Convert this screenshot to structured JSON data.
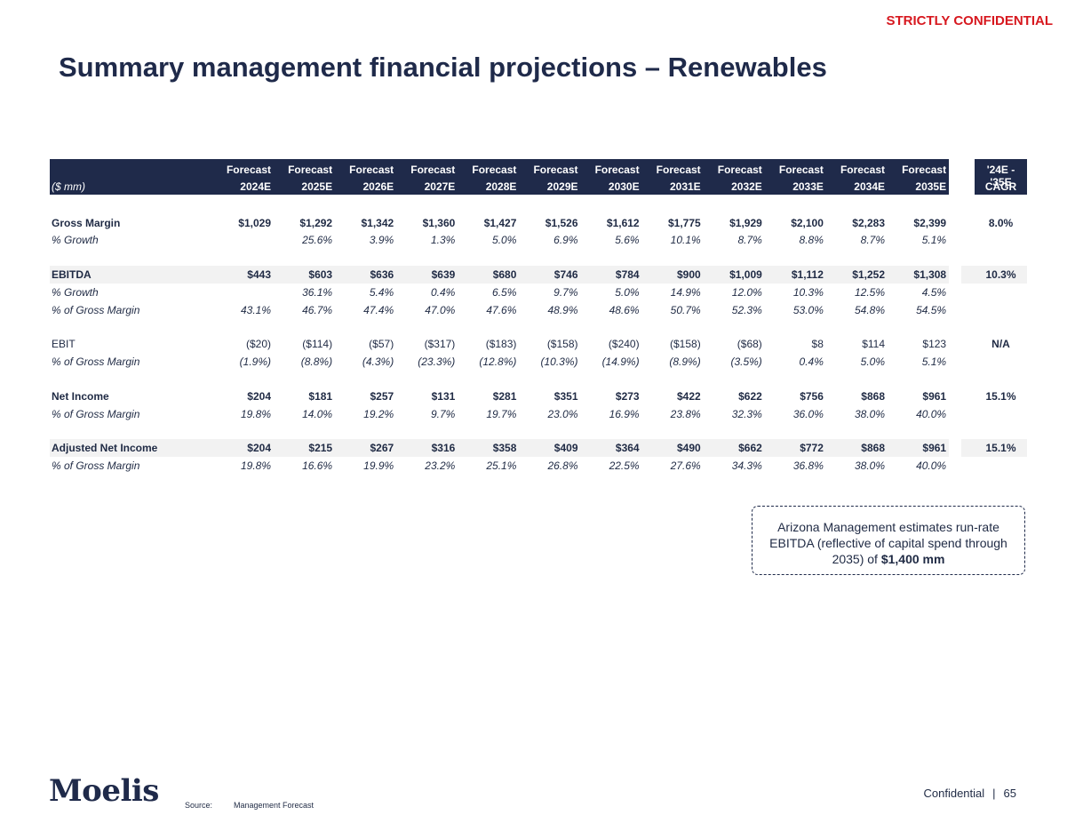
{
  "banner": "STRICTLY CONFIDENTIAL",
  "title": "Summary management financial projections – Renewables",
  "table": {
    "unit_label": "($ mm)",
    "header_top": [
      "Forecast",
      "Forecast",
      "Forecast",
      "Forecast",
      "Forecast",
      "Forecast",
      "Forecast",
      "Forecast",
      "Forecast",
      "Forecast",
      "Forecast",
      "Forecast"
    ],
    "years": [
      "2024E",
      "2025E",
      "2026E",
      "2027E",
      "2028E",
      "2029E",
      "2030E",
      "2031E",
      "2032E",
      "2033E",
      "2034E",
      "2035E"
    ],
    "cagr_header_top": "'24E - '35E",
    "cagr_header_bottom": "CAGR",
    "rows": [
      {
        "label": "Gross Margin",
        "style": "bold",
        "values": [
          "$1,029",
          "$1,292",
          "$1,342",
          "$1,360",
          "$1,427",
          "$1,526",
          "$1,612",
          "$1,775",
          "$1,929",
          "$2,100",
          "$2,283",
          "$2,399"
        ],
        "cagr": "8.0%"
      },
      {
        "label": "% Growth",
        "style": "italic",
        "values": [
          "",
          "25.6%",
          "3.9%",
          "1.3%",
          "5.0%",
          "6.9%",
          "5.6%",
          "10.1%",
          "8.7%",
          "8.8%",
          "8.7%",
          "5.1%"
        ],
        "cagr": ""
      },
      {
        "label": "EBITDA",
        "style": "bold",
        "shaded": true,
        "values": [
          "$443",
          "$603",
          "$636",
          "$639",
          "$680",
          "$746",
          "$784",
          "$900",
          "$1,009",
          "$1,112",
          "$1,252",
          "$1,308"
        ],
        "cagr": "10.3%"
      },
      {
        "label": "% Growth",
        "style": "italic",
        "values": [
          "",
          "36.1%",
          "5.4%",
          "0.4%",
          "6.5%",
          "9.7%",
          "5.0%",
          "14.9%",
          "12.0%",
          "10.3%",
          "12.5%",
          "4.5%"
        ],
        "cagr": ""
      },
      {
        "label": "% of Gross Margin",
        "style": "italic",
        "values": [
          "43.1%",
          "46.7%",
          "47.4%",
          "47.0%",
          "47.6%",
          "48.9%",
          "48.6%",
          "50.7%",
          "52.3%",
          "53.0%",
          "54.8%",
          "54.5%"
        ],
        "cagr": ""
      },
      {
        "label": "EBIT",
        "style": "normal",
        "values": [
          "($20)",
          "($114)",
          "($57)",
          "($317)",
          "($183)",
          "($158)",
          "($240)",
          "($158)",
          "($68)",
          "$8",
          "$114",
          "$123"
        ],
        "cagr": "N/A"
      },
      {
        "label": "% of Gross Margin",
        "style": "italic",
        "values": [
          "(1.9%)",
          "(8.8%)",
          "(4.3%)",
          "(23.3%)",
          "(12.8%)",
          "(10.3%)",
          "(14.9%)",
          "(8.9%)",
          "(3.5%)",
          "0.4%",
          "5.0%",
          "5.1%"
        ],
        "cagr": ""
      },
      {
        "label": "Net Income",
        "style": "bold",
        "values": [
          "$204",
          "$181",
          "$257",
          "$131",
          "$281",
          "$351",
          "$273",
          "$422",
          "$622",
          "$756",
          "$868",
          "$961"
        ],
        "cagr": "15.1%"
      },
      {
        "label": "% of Gross Margin",
        "style": "italic",
        "values": [
          "19.8%",
          "14.0%",
          "19.2%",
          "9.7%",
          "19.7%",
          "23.0%",
          "16.9%",
          "23.8%",
          "32.3%",
          "36.0%",
          "38.0%",
          "40.0%"
        ],
        "cagr": ""
      },
      {
        "label": "Adjusted Net Income",
        "style": "bold",
        "shaded": true,
        "values": [
          "$204",
          "$215",
          "$267",
          "$316",
          "$358",
          "$409",
          "$364",
          "$490",
          "$662",
          "$772",
          "$868",
          "$961"
        ],
        "cagr": "15.1%"
      },
      {
        "label": "% of Gross Margin",
        "style": "italic",
        "values": [
          "19.8%",
          "16.6%",
          "19.9%",
          "23.2%",
          "25.1%",
          "26.8%",
          "22.5%",
          "27.6%",
          "34.3%",
          "36.8%",
          "38.0%",
          "40.0%"
        ],
        "cagr": ""
      }
    ]
  },
  "callout": {
    "text": "Arizona Management estimates run-rate EBITDA (reflective of capital spend through 2035) of ",
    "emphasis": "$1,400 mm"
  },
  "logo": "Moelis",
  "source_label": "Source:",
  "source_text": "Management Forecast",
  "footer": {
    "label": "Confidential",
    "separator": "|",
    "page_number": "65"
  }
}
